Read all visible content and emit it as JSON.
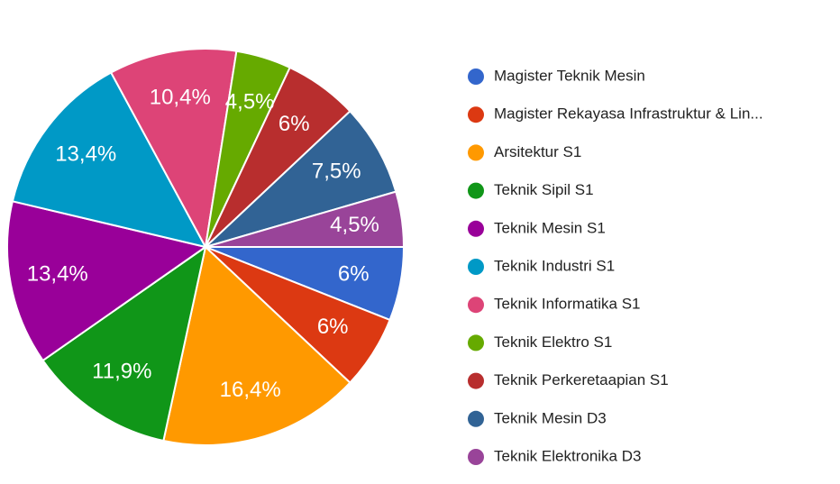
{
  "chart_data": {
    "type": "pie",
    "categories": [
      "Magister Teknik Mesin",
      "Magister Rekayasa Infrastruktur & Lin...",
      "Arsitektur S1",
      "Teknik Sipil S1",
      "Teknik Mesin S1",
      "Teknik Industri S1",
      "Teknik Informatika S1",
      "Teknik Elektro S1",
      "Teknik Perkeretaapian S1",
      "Teknik Mesin D3",
      "Teknik Elektronika D3"
    ],
    "values": [
      6,
      6,
      16.4,
      11.9,
      13.4,
      13.4,
      10.4,
      4.5,
      6,
      7.5,
      4.5
    ],
    "value_labels": [
      "6%",
      "6%",
      "16,4%",
      "11,9%",
      "13,4%",
      "13,4%",
      "10,4%",
      "4,5%",
      "6%",
      "7,5%",
      "4,5%"
    ],
    "colors": [
      "#3366cc",
      "#dc3912",
      "#ff9900",
      "#109618",
      "#990099",
      "#0099c6",
      "#dd4477",
      "#66aa00",
      "#b82e2e",
      "#316395",
      "#994499"
    ],
    "legend": "right"
  }
}
